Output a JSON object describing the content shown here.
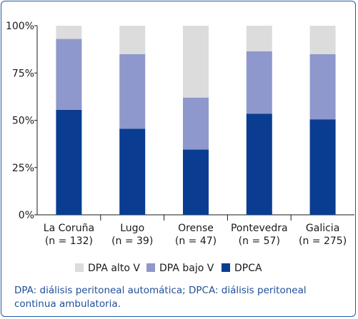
{
  "chart_data": {
    "type": "bar",
    "stacked": true,
    "categories": [
      "La Coruña",
      "Lugo",
      "Orense",
      "Pontevedra",
      "Galicia"
    ],
    "category_counts": [
      "(n = 132)",
      "(n = 39)",
      "(n = 47)",
      "(n = 57)",
      "(n = 275)"
    ],
    "series": [
      {
        "name": "DPCA",
        "color": "#0a3d91",
        "values": [
          55.5,
          45.5,
          34.5,
          53.5,
          50.5
        ]
      },
      {
        "name": "DPA bajo V",
        "color": "#8f98cc",
        "values": [
          37.5,
          39.5,
          27.5,
          33.0,
          34.5
        ]
      },
      {
        "name": "DPA alto V",
        "color": "#dcdcdc",
        "values": [
          7.0,
          15.0,
          38.0,
          13.5,
          15.0
        ]
      }
    ],
    "y_ticks": [
      "0%",
      "25%",
      "50%",
      "75%",
      "100%"
    ],
    "ylim": [
      0,
      100
    ],
    "legend": [
      "DPA alto V",
      "DPA bajo V",
      "DPCA"
    ],
    "legend_position": "bottom"
  },
  "caption": "DPA: diálisis peritoneal automática; DPCA: diálisis peritoneal continua ambulatoria."
}
